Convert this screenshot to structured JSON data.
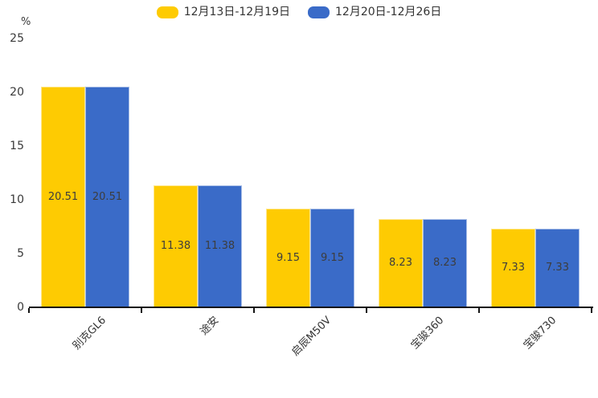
{
  "chart_data": {
    "type": "bar",
    "title": "",
    "ylabel": "%",
    "xlabel": "",
    "ylim": [
      0,
      25
    ],
    "yticks": [
      0,
      5,
      10,
      15,
      20,
      25
    ],
    "grid": false,
    "legend_position": "top-center",
    "value_labels": true,
    "categories": [
      "别克GL6",
      "途安",
      "启辰M50V",
      "宝骏360",
      "宝骏730"
    ],
    "series": [
      {
        "name": "12月13日-12月19日",
        "color": "#FECB02",
        "values": [
          20.51,
          11.38,
          9.15,
          8.23,
          7.33
        ]
      },
      {
        "name": "12月20日-12月26日",
        "color": "#3A6BC8",
        "values": [
          20.51,
          11.38,
          9.15,
          8.23,
          7.33
        ]
      }
    ],
    "background": "#ffffff",
    "axis_color": "#141414",
    "label_color": "#3d3d3d"
  }
}
